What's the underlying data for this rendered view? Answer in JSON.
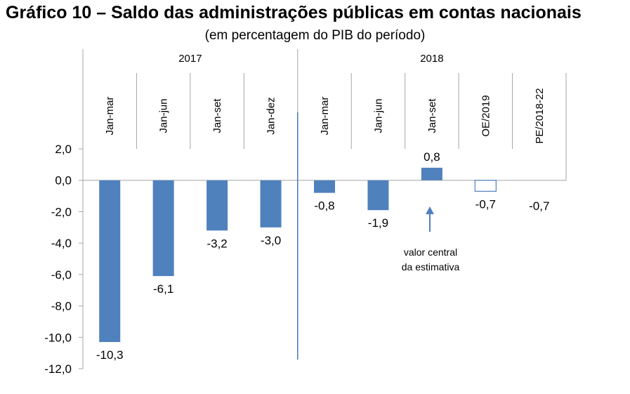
{
  "title": "Gráfico 10 – Saldo das administrações públicas em contas nacionais",
  "subtitle": "(em percentagem do PIB do período)",
  "colors": {
    "bar": "#4f81bd",
    "outline": "#4f81bd",
    "axis": "#a6a6a6",
    "divider": "#4f81bd"
  },
  "annotation": {
    "line1": "valor central",
    "line2": "da estimativa",
    "icon": "arrow-up-icon"
  },
  "chart_data": {
    "type": "bar",
    "ylim": [
      -12,
      2
    ],
    "yticks": [
      "2,0",
      "0,0",
      "-2,0",
      "-4,0",
      "-6,0",
      "-8,0",
      "-10,0",
      "-12,0"
    ],
    "ytick_values": [
      2,
      0,
      -2,
      -4,
      -6,
      -8,
      -10,
      -12
    ],
    "groups": [
      {
        "label": "2017",
        "span": [
          0,
          3
        ]
      },
      {
        "label": "2018",
        "span": [
          4,
          8
        ]
      }
    ],
    "categories": [
      "Jan-mar",
      "Jan-jun",
      "Jan-set",
      "Jan-dez",
      "Jan-mar",
      "Jan-jun",
      "Jan-set",
      "OE/2019",
      "PE/2018-22"
    ],
    "values": [
      -10.3,
      -6.1,
      -3.2,
      -3.0,
      -0.8,
      -1.9,
      0.8,
      -0.7,
      -0.7
    ],
    "value_labels": [
      "-10,3",
      "-6,1",
      "-3,2",
      "-3,0",
      "-0,8",
      "-1,9",
      "0,8",
      "-0,7",
      "-0,7"
    ],
    "styles": [
      "filled",
      "filled",
      "filled",
      "filled",
      "filled",
      "filled",
      "filled",
      "outline",
      "none"
    ]
  }
}
